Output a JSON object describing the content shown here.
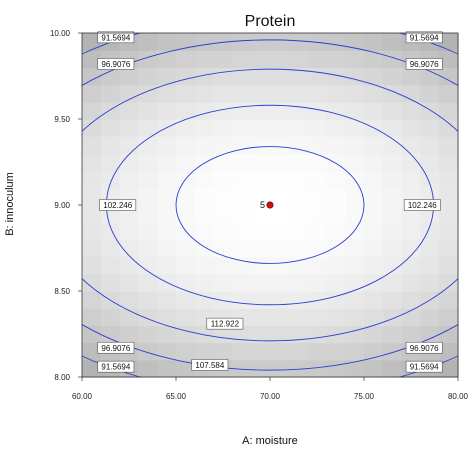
{
  "chart_data": {
    "type": "contour",
    "title": "Protein",
    "xlabel": "A: moisture",
    "ylabel": "B: innoculum",
    "xlim": [
      60,
      80
    ],
    "ylim": [
      8,
      10
    ],
    "x_ticks": [
      "60.00",
      "65.00",
      "70.00",
      "75.00",
      "80.00"
    ],
    "y_ticks": [
      "8.00",
      "8.50",
      "9.00",
      "9.50",
      "10.00"
    ],
    "center": {
      "x": 70,
      "y": 9,
      "label": "5"
    },
    "contours": [
      {
        "level": "112.922",
        "a": 5.0,
        "b": 0.34,
        "labels": [
          {
            "text": "112.922",
            "x": 67.6,
            "y": 8.31
          }
        ]
      },
      {
        "level": "107.584",
        "a": 8.7,
        "b": 0.58,
        "labels": [
          {
            "text": "107.584",
            "x": 66.8,
            "y": 8.07
          }
        ]
      },
      {
        "level": "102.246",
        "a": 11.9,
        "b": 0.79,
        "labels": [
          {
            "text": "102.246",
            "x": 61.9,
            "y": 9.0
          },
          {
            "text": "102.246",
            "x": 78.1,
            "y": 9.0
          }
        ]
      },
      {
        "level": "96.9076",
        "a": 14.5,
        "b": 0.96,
        "labels": [
          {
            "text": "96.9076",
            "x": 61.8,
            "y": 9.82
          },
          {
            "text": "96.9076",
            "x": 78.2,
            "y": 9.82
          },
          {
            "text": "96.9076",
            "x": 61.8,
            "y": 8.17
          },
          {
            "text": "96.9076",
            "x": 78.2,
            "y": 8.17
          }
        ]
      },
      {
        "level": "91.5694",
        "a": 16.6,
        "b": 1.1,
        "labels": [
          {
            "text": "91.5694",
            "x": 61.8,
            "y": 9.975
          },
          {
            "text": "91.5694",
            "x": 78.2,
            "y": 9.975
          },
          {
            "text": "91.5694",
            "x": 61.8,
            "y": 8.06
          },
          {
            "text": "91.5694",
            "x": 78.2,
            "y": 8.06
          }
        ]
      }
    ],
    "colors": {
      "contour": "#2a3fd0",
      "point": "#d01010",
      "shade_dark": "#8c8c8c",
      "shade_light": "#ffffff"
    }
  }
}
